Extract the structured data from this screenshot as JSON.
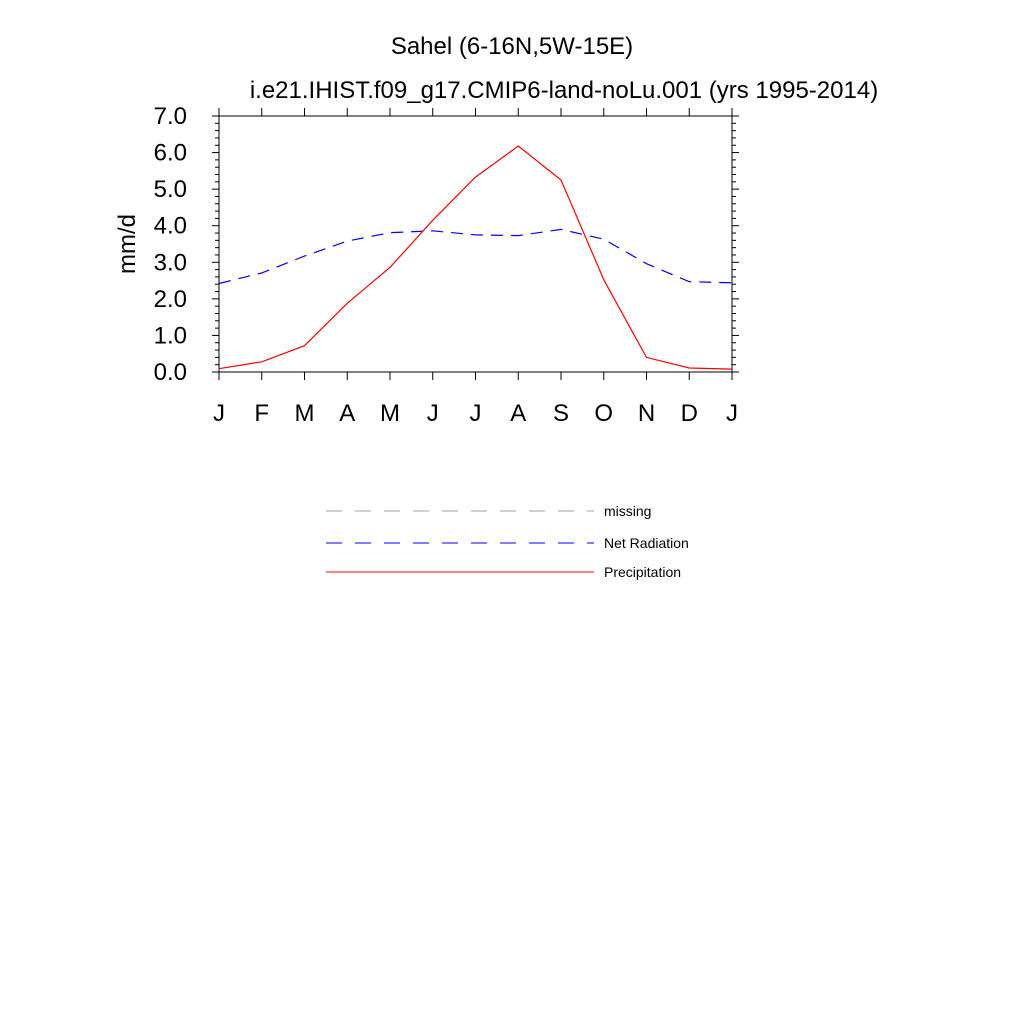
{
  "chart_data": {
    "type": "line",
    "title": "Sahel (6-16N,5W-15E)",
    "subtitle": "i.e21.IHIST.f09_g17.CMIP6-land-noLu.001 (yrs 1995-2014)",
    "ylabel": "mm/d",
    "xlabel": "",
    "ylim": [
      0,
      7
    ],
    "yticks": [
      "0.0",
      "1.0",
      "2.0",
      "3.0",
      "4.0",
      "5.0",
      "6.0",
      "7.0"
    ],
    "categories": [
      "J",
      "F",
      "M",
      "A",
      "M",
      "J",
      "J",
      "A",
      "S",
      "O",
      "N",
      "D",
      "J"
    ],
    "series": [
      {
        "name": "Net Radiation",
        "color": "#0000ff",
        "dash": "dashed",
        "values": [
          2.42,
          2.71,
          3.17,
          3.58,
          3.81,
          3.86,
          3.75,
          3.73,
          3.9,
          3.63,
          2.96,
          2.47,
          2.44
        ]
      },
      {
        "name": "Precipitation",
        "color": "#ff0000",
        "dash": "solid",
        "values": [
          0.09,
          0.28,
          0.72,
          1.88,
          2.86,
          4.15,
          5.33,
          6.18,
          5.25,
          2.52,
          0.4,
          0.11,
          0.08
        ]
      }
    ],
    "legend": {
      "position": "below",
      "entries": [
        {
          "label": "missing",
          "color": "#a0a0a0",
          "dash": "dashed"
        },
        {
          "label": "Net Radiation",
          "color": "#0000ff",
          "dash": "dashed"
        },
        {
          "label": "Precipitation",
          "color": "#ff0000",
          "dash": "solid"
        }
      ]
    },
    "grid": false
  }
}
